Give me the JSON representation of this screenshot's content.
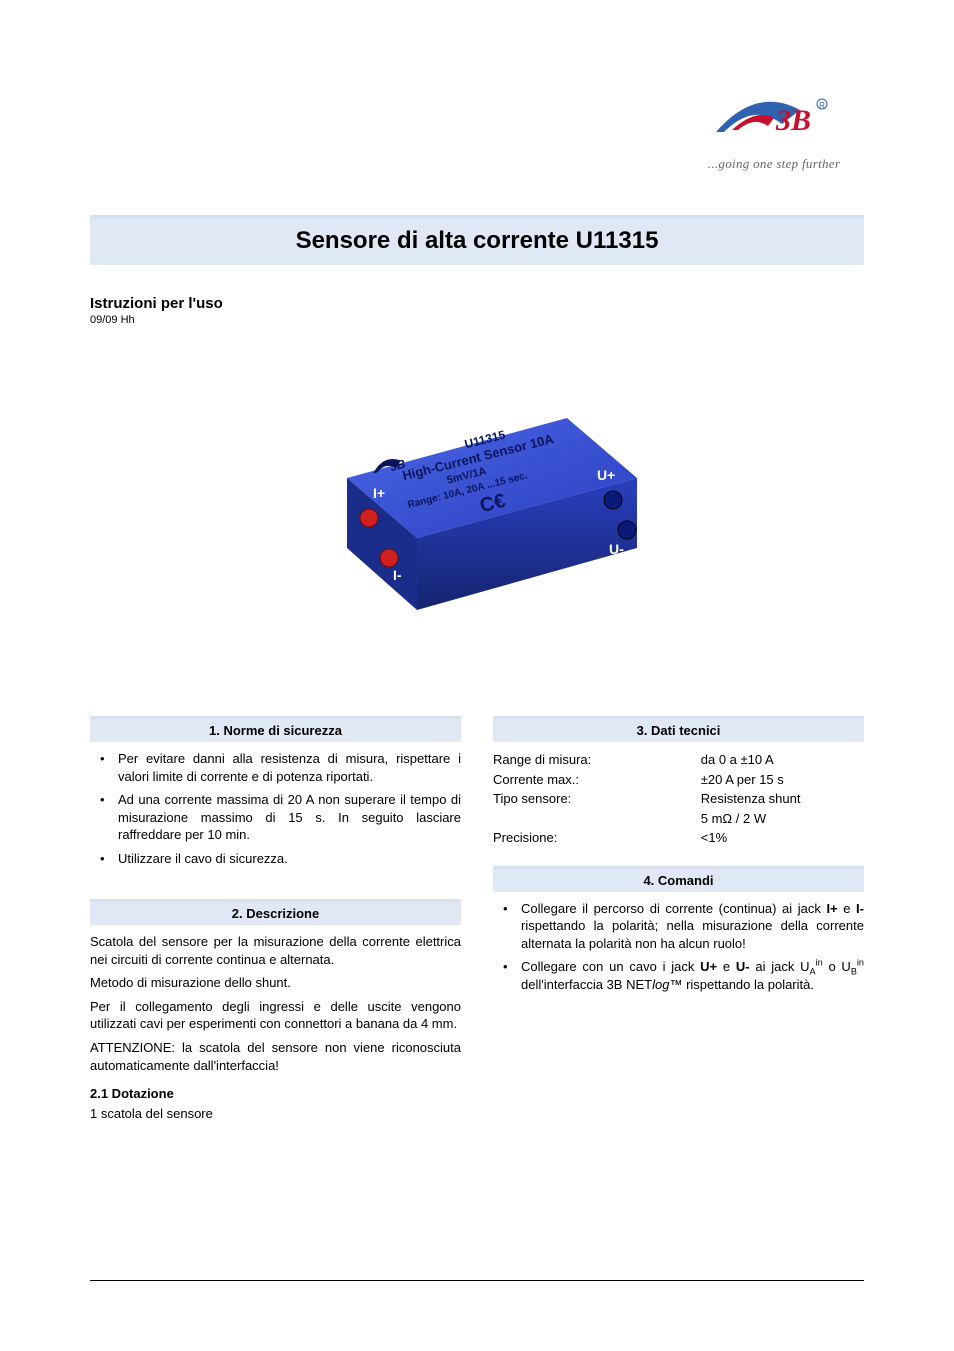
{
  "brand": {
    "tagline": "...going one step further",
    "logo_colors": {
      "swoosh_blue": "#2f63b0",
      "text_red": "#c8102e",
      "ring": "#2f63b0"
    },
    "logo_text": "3B",
    "registered": "®"
  },
  "title": "Sensore di alta corrente   U11315",
  "header": {
    "instructions": "Istruzioni per l'uso",
    "date": "09/09 Hh"
  },
  "product_image": {
    "box_color": "#2a3fbf",
    "box_highlight": "#4a66e6",
    "jack_red": "#d02020",
    "jack_blue": "#0a1a7a",
    "label_lines": [
      "U11315",
      "High-Current Sensor 10A",
      "5mV/1A",
      "Range: 10A, 20A ...15 sec."
    ],
    "ce_mark": "CE",
    "jack_labels": [
      "I+",
      "I-",
      "U+",
      "U-"
    ],
    "logo_text": "3B"
  },
  "sections": {
    "safety": {
      "title": "1. Norme di sicurezza",
      "items": [
        "Per evitare danni alla resistenza di misura, rispettare i valori limite di corrente e di potenza riportati.",
        "Ad una corrente massima di 20 A non superare il tempo di misurazione massimo di 15 s. In seguito lasciare raffreddare per 10 min.",
        "Utilizzare il cavo di sicurezza."
      ]
    },
    "description": {
      "title": "2. Descrizione",
      "paras": [
        "Scatola del sensore per la misurazione della corrente elettrica nei circuiti di corrente continua e alternata.",
        "Metodo di misurazione dello shunt.",
        "Per il collegamento degli ingressi e delle uscite vengono utilizzati cavi per esperimenti con connettori a banana da 4 mm.",
        "ATTENZIONE: la scatola del sensore non viene riconosciuta automaticamente dall'interfaccia!"
      ],
      "subsection": {
        "title": "2.1  Dotazione",
        "line": "1 scatola del sensore"
      }
    },
    "tech": {
      "title": "3. Dati tecnici",
      "rows": [
        {
          "label": "Range di misura:",
          "value": "da 0 a ±10 A"
        },
        {
          "label": "Corrente max.:",
          "value": "±20 A per 15 s"
        },
        {
          "label": "Tipo sensore:",
          "value": "Resistenza shunt"
        },
        {
          "label": "",
          "value": "5 mΩ / 2 W"
        },
        {
          "label": "Precisione:",
          "value": "<1%"
        }
      ]
    },
    "commands": {
      "title": "4. Comandi",
      "items_html": [
        "Collegare il percorso di corrente (continua) ai jack <b>I+</b> e <b>I-</b> rispettando la polarità; nella misurazione della corrente alternata la polarità non ha alcun ruolo!",
        "Collegare con un cavo i jack <b>U+</b> e <b>U-</b> ai jack U<span class=\"sub\">A</span><span class=\"sup\">in</span> o U<span class=\"sub\">B</span><span class=\"sup\">in</span> dell'interfaccia 3B NET<i>log</i>™ rispettando la polarità."
      ]
    }
  },
  "colors": {
    "section_bg": "#dfe8f4",
    "section_border": "#d7e2f0",
    "text": "#000000",
    "page_bg": "#ffffff"
  }
}
